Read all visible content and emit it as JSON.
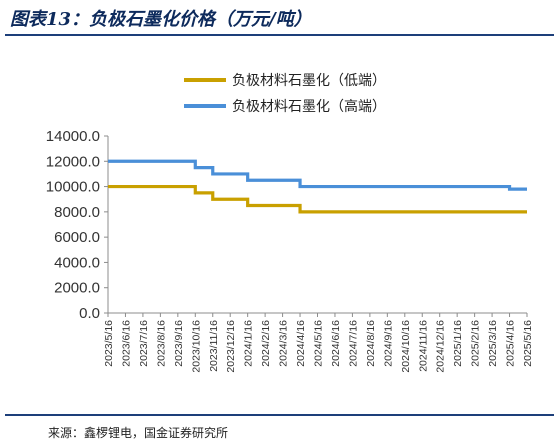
{
  "figure": {
    "title": "图表13：负极石墨化价格（万元/吨）",
    "source": "来源：鑫椤锂电，国金证券研究所"
  },
  "chart_data": {
    "type": "line",
    "title": "",
    "xlabel": "",
    "ylabel": "",
    "ylim": [
      0,
      14000
    ],
    "yticks": [
      "0.0",
      "2000.0",
      "4000.0",
      "6000.0",
      "8000.0",
      "10000.0",
      "12000.0",
      "14000.0"
    ],
    "x": [
      "2023/5/16",
      "2023/6/16",
      "2023/7/16",
      "2023/8/16",
      "2023/9/16",
      "2023/10/16",
      "2023/11/16",
      "2023/12/16",
      "2024/1/16",
      "2024/2/16",
      "2024/3/16",
      "2024/4/16",
      "2024/5/16",
      "2024/6/16",
      "2024/7/16",
      "2024/8/16",
      "2024/9/16",
      "2024/10/16",
      "2024/11/16",
      "2024/12/16",
      "2025/1/16",
      "2025/2/16",
      "2025/3/16",
      "2025/4/16",
      "2025/5/16"
    ],
    "grid": false,
    "legend_position": "top",
    "series": [
      {
        "name": "负极材料石墨化（低端）",
        "color": "#c9a000",
        "values": [
          10000,
          10000,
          10000,
          10000,
          10000,
          9500,
          9000,
          9000,
          8500,
          8500,
          8500,
          8000,
          8000,
          8000,
          8000,
          8000,
          8000,
          8000,
          8000,
          8000,
          8000,
          8000,
          8000,
          8000,
          8000
        ]
      },
      {
        "name": "负极材料石墨化（高端）",
        "color": "#4a8fd8",
        "values": [
          12000,
          12000,
          12000,
          12000,
          12000,
          11500,
          11000,
          11000,
          10500,
          10500,
          10500,
          10000,
          10000,
          10000,
          10000,
          10000,
          10000,
          10000,
          10000,
          10000,
          10000,
          10000,
          10000,
          9800,
          9800
        ]
      }
    ]
  }
}
